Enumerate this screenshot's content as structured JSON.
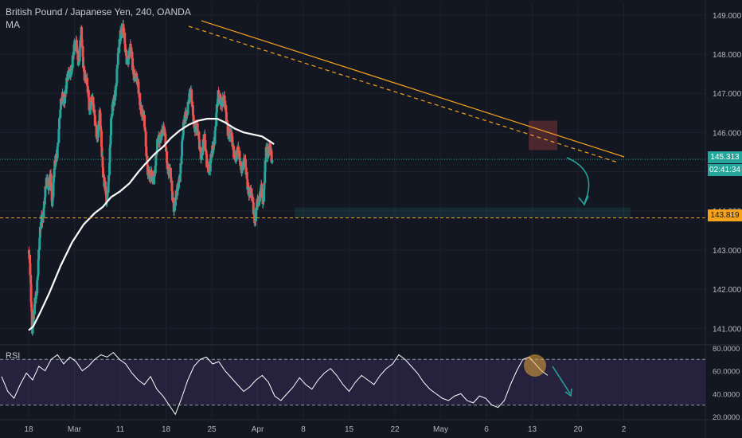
{
  "header": {
    "title": "British Pound / Japanese Yen, 240, OANDA",
    "indicator": "MA"
  },
  "rsi_panel": {
    "label": "RSI"
  },
  "price_tags": {
    "last_price": "145.313",
    "countdown": "02:41:34",
    "support": "143.819"
  },
  "colors": {
    "background": "#131722",
    "bull": "#26a69a",
    "bear": "#ef5350",
    "ma": "#ffffff",
    "trendline": "#f6a31b",
    "support": "#f6a31b",
    "last_price": "#26a69a",
    "rsi_line": "#ffffff",
    "rsi_band": "#7e57c2",
    "arrow": "#26a69a",
    "highlight_circle": "#e5a53a",
    "resistance_box": "#ef5350",
    "support_zone": "#26a69a"
  },
  "chart_data": [
    {
      "type": "candlestick",
      "title": "British Pound / Japanese Yen, 240, OANDA",
      "y_ticks": [
        "149.000",
        "148.000",
        "147.000",
        "146.000",
        "145.000",
        "144.000",
        "143.000",
        "142.000",
        "141.000"
      ],
      "ylim": [
        140.6,
        149.3
      ],
      "x_ticks": [
        "18",
        "Mar",
        "11",
        "18",
        "25",
        "Apr",
        "8",
        "15",
        "22",
        "May",
        "6",
        "13",
        "20",
        "2"
      ],
      "price_path": [
        [
          0,
          143.0
        ],
        [
          0.04,
          142.2
        ],
        [
          0.08,
          141.1
        ],
        [
          0.12,
          141.3
        ],
        [
          0.17,
          142.0
        ],
        [
          0.22,
          142.9
        ],
        [
          0.28,
          143.7
        ],
        [
          0.33,
          144.2
        ],
        [
          0.38,
          144.5
        ],
        [
          0.42,
          144.9
        ],
        [
          0.45,
          144.6
        ],
        [
          0.48,
          144.8
        ],
        [
          0.52,
          144.3
        ],
        [
          0.56,
          144.9
        ],
        [
          0.62,
          145.6
        ],
        [
          0.68,
          146.4
        ],
        [
          0.75,
          146.9
        ],
        [
          0.8,
          147.1
        ],
        [
          0.86,
          147.3
        ],
        [
          0.92,
          147.7
        ],
        [
          0.98,
          148.0
        ],
        [
          1.05,
          148.2
        ],
        [
          1.1,
          147.9
        ],
        [
          1.15,
          148.4
        ],
        [
          1.2,
          147.8
        ],
        [
          1.26,
          147.2
        ],
        [
          1.32,
          146.7
        ],
        [
          1.38,
          147.0
        ],
        [
          1.44,
          146.2
        ],
        [
          1.5,
          146.0
        ],
        [
          1.55,
          146.4
        ],
        [
          1.6,
          145.5
        ],
        [
          1.65,
          144.8
        ],
        [
          1.7,
          144.1
        ],
        [
          1.75,
          145.0
        ],
        [
          1.8,
          146.1
        ],
        [
          1.86,
          146.9
        ],
        [
          1.92,
          147.4
        ],
        [
          1.97,
          148.0
        ],
        [
          2.01,
          148.8
        ],
        [
          2.06,
          148.5
        ],
        [
          2.12,
          148.1
        ],
        [
          2.18,
          147.9
        ],
        [
          2.24,
          148.0
        ],
        [
          2.3,
          147.6
        ],
        [
          2.36,
          147.2
        ],
        [
          2.42,
          147.0
        ],
        [
          2.48,
          146.5
        ],
        [
          2.54,
          146.0
        ],
        [
          2.6,
          145.2
        ],
        [
          2.66,
          144.7
        ],
        [
          2.72,
          144.9
        ],
        [
          2.78,
          145.3
        ],
        [
          2.84,
          145.8
        ],
        [
          2.9,
          146.1
        ],
        [
          2.96,
          145.9
        ],
        [
          3.02,
          145.4
        ],
        [
          3.07,
          145.0
        ],
        [
          3.12,
          144.6
        ],
        [
          3.18,
          144.2
        ],
        [
          3.24,
          144.3
        ],
        [
          3.3,
          145.0
        ],
        [
          3.36,
          145.8
        ],
        [
          3.42,
          146.4
        ],
        [
          3.48,
          146.8
        ],
        [
          3.54,
          146.9
        ],
        [
          3.6,
          146.5
        ],
        [
          3.66,
          146.0
        ],
        [
          3.72,
          145.8
        ],
        [
          3.78,
          145.5
        ],
        [
          3.84,
          145.7
        ],
        [
          3.9,
          145.3
        ],
        [
          3.96,
          145.0
        ],
        [
          4.02,
          145.6
        ],
        [
          4.08,
          146.2
        ],
        [
          4.14,
          146.8
        ],
        [
          4.2,
          147.0
        ],
        [
          4.26,
          146.7
        ],
        [
          4.32,
          146.4
        ],
        [
          4.38,
          146.0
        ],
        [
          4.44,
          145.7
        ],
        [
          4.5,
          145.5
        ],
        [
          4.56,
          145.4
        ],
        [
          4.62,
          145.3
        ],
        [
          4.68,
          145.2
        ],
        [
          4.74,
          145.0
        ],
        [
          4.8,
          144.7
        ],
        [
          4.86,
          144.3
        ],
        [
          4.92,
          144.0
        ],
        [
          4.96,
          143.85
        ],
        [
          5.0,
          144.1
        ],
        [
          5.04,
          144.5
        ],
        [
          5.08,
          144.4
        ],
        [
          5.12,
          144.3
        ],
        [
          5.16,
          145.0
        ],
        [
          5.2,
          145.5
        ],
        [
          5.24,
          145.7
        ],
        [
          5.28,
          145.4
        ],
        [
          5.32,
          145.3
        ]
      ],
      "moving_average": [
        [
          0,
          140.95
        ],
        [
          0.1,
          141.05
        ],
        [
          0.25,
          141.4
        ],
        [
          0.45,
          141.9
        ],
        [
          0.7,
          142.6
        ],
        [
          0.95,
          143.2
        ],
        [
          1.2,
          143.65
        ],
        [
          1.45,
          143.95
        ],
        [
          1.62,
          144.1
        ],
        [
          1.8,
          144.35
        ],
        [
          2.0,
          144.5
        ],
        [
          2.2,
          144.7
        ],
        [
          2.4,
          145.0
        ],
        [
          2.55,
          145.2
        ],
        [
          2.75,
          145.45
        ],
        [
          2.95,
          145.65
        ],
        [
          3.1,
          145.85
        ],
        [
          3.3,
          146.05
        ],
        [
          3.5,
          146.2
        ],
        [
          3.7,
          146.3
        ],
        [
          3.9,
          146.35
        ],
        [
          4.12,
          146.35
        ],
        [
          4.3,
          146.25
        ],
        [
          4.5,
          146.1
        ],
        [
          4.7,
          146.0
        ],
        [
          4.9,
          145.95
        ],
        [
          5.1,
          145.9
        ],
        [
          5.3,
          145.75
        ],
        [
          5.36,
          145.7
        ]
      ],
      "last_price": 145.313,
      "support_level": 143.819
    },
    {
      "type": "line",
      "title": "RSI",
      "y_ticks": [
        "80.0000",
        "60.0000",
        "40.0000",
        "20.0000"
      ],
      "ylim": [
        18,
        82
      ],
      "overbought": 70,
      "oversold": 30,
      "values": [
        55,
        42,
        36,
        48,
        58,
        52,
        64,
        60,
        70,
        74,
        66,
        72,
        68,
        60,
        64,
        70,
        74,
        72,
        76,
        70,
        66,
        58,
        52,
        48,
        55,
        44,
        38,
        30,
        22,
        36,
        52,
        64,
        70,
        72,
        66,
        68,
        60,
        54,
        48,
        42,
        46,
        52,
        56,
        50,
        38,
        34,
        40,
        46,
        54,
        48,
        44,
        52,
        58,
        62,
        56,
        48,
        42,
        50,
        56,
        52,
        48,
        56,
        62,
        66,
        74,
        70,
        64,
        58,
        50,
        44,
        40,
        36,
        34,
        38,
        40,
        34,
        32,
        38,
        36,
        30,
        28,
        34,
        48,
        60,
        70,
        72,
        66,
        60,
        56
      ]
    }
  ]
}
